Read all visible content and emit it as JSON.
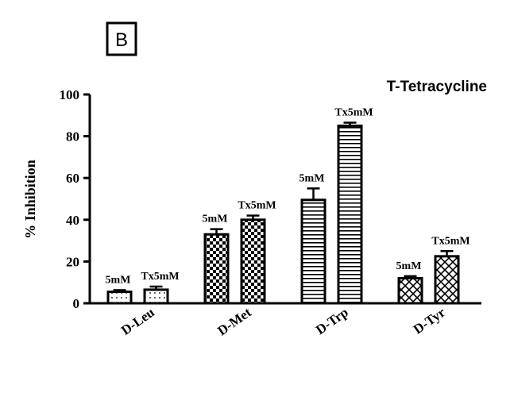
{
  "panel_label": "B",
  "chart_data": {
    "type": "bar",
    "title": "T-Tetracycline",
    "ylabel": "% Inhibition",
    "xlabel": "",
    "ylim": [
      0,
      100
    ],
    "yticks": [
      "0",
      "20",
      "40",
      "60",
      "80",
      "100"
    ],
    "categories": [
      "D-Leu",
      "D-Met",
      "D-Trp",
      "D-Tyr"
    ],
    "series": [
      {
        "bar_labels": [
          "5mM",
          "5mM",
          "5mM",
          "5mM"
        ],
        "values": [
          5.5,
          33,
          49.5,
          12
        ],
        "errors": [
          0.8,
          2.5,
          5.5,
          1
        ],
        "patterns": [
          "dots",
          "checker",
          "hlines",
          "crosshatch"
        ]
      },
      {
        "bar_labels": [
          "Tx5mM",
          "Tx5mM",
          "Tx5mM",
          "Tx5mM"
        ],
        "values": [
          6.5,
          40,
          85,
          22.5
        ],
        "errors": [
          1.5,
          2,
          1.5,
          2.5
        ],
        "patterns": [
          "dots",
          "checker",
          "hlines",
          "crosshatch"
        ]
      }
    ],
    "grid": false,
    "legend": "none"
  }
}
